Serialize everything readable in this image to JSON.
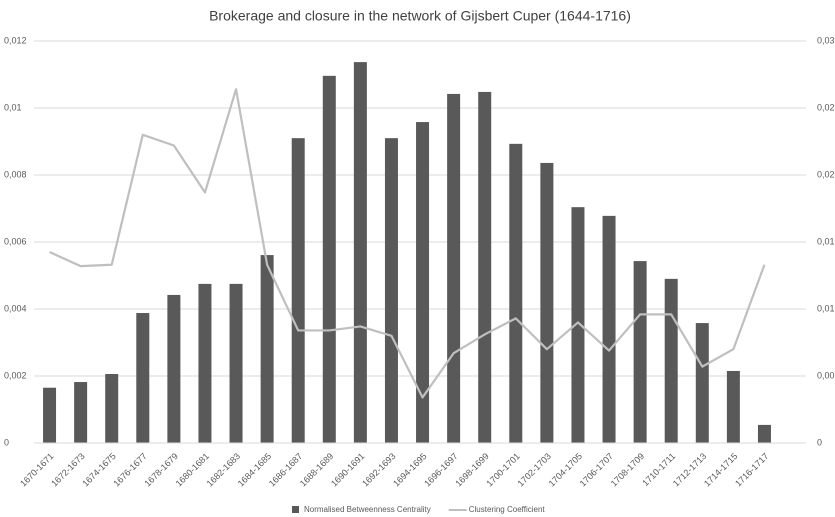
{
  "chart_data": {
    "type": "bar+line",
    "title": "Brokerage and closure in the network of Gijsbert Cuper (1644-1716)",
    "categories": [
      "1670-1671",
      "1672-1673",
      "1674-1675",
      "1676-1677",
      "1678-1679",
      "1680-1681",
      "1682-1683",
      "1684-1685",
      "1686-1687",
      "1688-1689",
      "1690-1691",
      "1692-1693",
      "1694-1695",
      "1696-1697",
      "1698-1699",
      "1700-1701",
      "1702-1703",
      "1704-1705",
      "1706-1707",
      "1708-1709",
      "1710-1711",
      "1712-1713",
      "1714-1715",
      "1716-1717"
    ],
    "series": [
      {
        "name": "Normalised Betweenness Centrality",
        "type": "bar",
        "color": "#595959",
        "values": [
          0.00165,
          0.00182,
          0.00206,
          0.00388,
          0.00442,
          0.00475,
          0.00475,
          0.00561,
          0.0091,
          0.01096,
          0.01137,
          0.0091,
          0.00958,
          0.01042,
          0.01048,
          0.00893,
          0.00836,
          0.00704,
          0.00678,
          0.00543,
          0.0049,
          0.00358,
          0.00215,
          0.00054
        ]
      },
      {
        "name": "Clustering Coefficient",
        "type": "line",
        "axis": "y2",
        "color": "#bfbfbf",
        "values": [
          0.01425,
          0.0132,
          0.0133,
          0.023,
          0.0222,
          0.0187,
          0.0264,
          0.0133,
          0.0084,
          0.0084,
          0.0087,
          0.008,
          0.0034,
          0.0067,
          0.0081,
          0.0093,
          0.007,
          0.009,
          0.0069,
          0.0096,
          0.0096,
          0.0057,
          0.007,
          0.0133
        ]
      }
    ],
    "ylim": [
      0,
      0.012
    ],
    "yticks": [
      0,
      {
        "value": 0.002,
        "label": "0,002"
      },
      {
        "value": 0.004,
        "label": "0,004"
      },
      {
        "value": 0.006,
        "label": "0,006"
      },
      {
        "value": 0.008,
        "label": "0,008"
      },
      {
        "value": 0.01,
        "label": "0,01"
      },
      {
        "value": 0.012,
        "label": "0,012"
      }
    ],
    "y2lim": [
      0,
      0.03
    ],
    "y2ticks": [
      0,
      {
        "value": 0.005,
        "label": "0,005"
      },
      {
        "value": 0.01,
        "label": "0,01"
      },
      {
        "value": 0.015,
        "label": "0,015"
      },
      {
        "value": 0.02,
        "label": "0,02"
      },
      {
        "value": 0.025,
        "label": "0,025"
      },
      {
        "value": 0.03,
        "label": "0,03"
      }
    ],
    "grid": true,
    "legend": "bottom"
  }
}
